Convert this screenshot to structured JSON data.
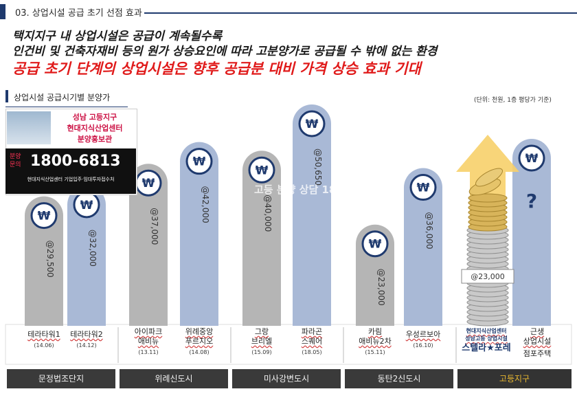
{
  "header": {
    "section_title": "03. 상업시설 공급 초기 선점 효과"
  },
  "headline": {
    "line1": "택지지구 내 상업시설은 공급이 계속될수록",
    "line2": "인건비 및 건축자재비 등의 원가 상승요인에 따라 고분양가로 공급될 수 밖에 없는 환경",
    "line3": "공급 초기 단계의 상업시설은 향후 공급분 대비 가격 상승 효과 기대"
  },
  "chart_data": {
    "type": "bar",
    "title": "상업시설 공급시기별 분양가",
    "unit_note": "(단위: 천원, 1층 평당가 기준)",
    "currency_symbol": "₩",
    "categories": [
      {
        "name": "테라타워1",
        "date": "(14.06)",
        "value": 29500,
        "label": "@29,500"
      },
      {
        "name": "테라타워2",
        "date": "(14.12)",
        "value": 32000,
        "label": "@32,000"
      },
      {
        "name": "아이파크\n애비뉴",
        "date": "(13.11)",
        "value": 37000,
        "label": "@37,000"
      },
      {
        "name": "위례중앙\n푸르지오",
        "date": "(14.08)",
        "value": 42000,
        "label": "@42,000"
      },
      {
        "name": "그랑\n브리엘",
        "date": "(15.09)",
        "value": 40000,
        "label": "@40,000"
      },
      {
        "name": "파라곤\n스퀘어",
        "date": "(18.05)",
        "value": 50650,
        "label": "@50,650"
      },
      {
        "name": "카림\n애비뉴2차",
        "date": "(15.11)",
        "value": 23000,
        "label": "@23,000"
      },
      {
        "name": "우성르보아",
        "date": "(16.10)",
        "value": 36000,
        "label": "@36,000"
      },
      {
        "name": "현대지식산업센터\n성남고등 상업시설",
        "date": "",
        "value": 23000,
        "label": "@23,000",
        "brand": "스텔라★포레"
      },
      {
        "name": "근생\n상업시설",
        "date": "점포주택",
        "value": null,
        "label": "?"
      }
    ],
    "regions": [
      "문정법조단지",
      "위례신도시",
      "미사강변도시",
      "동탄2신도시",
      "고등지구"
    ],
    "colors": {
      "gray": "#b5b5b5",
      "blue": "#a9b9d6",
      "icon": "#1f3a6e",
      "accent": "#f0b93a"
    }
  },
  "ad": {
    "line1": "성남 고등지구",
    "line2": "현대지식산업센터",
    "line3": "분양홍보관",
    "tel_label": "분양\n문의",
    "tel": "1800-6813",
    "footer": "현대지식산업센터 기업입주·임대투자접수처"
  },
  "watermark": "고등 분양 상담 1800"
}
